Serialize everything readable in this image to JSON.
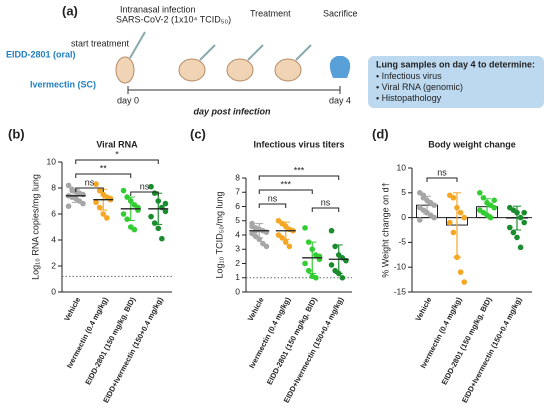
{
  "schematic": {
    "panel": "(a)",
    "infection": "Intranasal infection",
    "virus": "SARS-CoV-2 (1x10⁴ TCID₅₀)",
    "start": "start treatment",
    "treatment": "Treatment",
    "sacrifice": "Sacrifice",
    "arm1": "EIDD-2801 (oral)",
    "arm2": "Ivermectin (SC)",
    "day0": "day 0",
    "day4": "day 4",
    "axis": "day post infection",
    "box_title": "Lung samples on day 4 to determine:",
    "box_items": [
      "Infectious virus",
      "Viral RNA (genomic)",
      "Histopathology"
    ]
  },
  "chart_data": [
    {
      "type": "strip",
      "panel": "(b)",
      "title": "Viral RNA",
      "ylabel": "Log₁₀ RNA copies/mg lung",
      "categories": [
        "Vehicle",
        "Ivermectin (0.4 mg/kg)",
        "EIDD-2801 (150 mg/kg, BID)",
        "EIDD+Ivermectin (150+0.4 mg/kg)"
      ],
      "colors": [
        "#a6a6a6",
        "#f5a623",
        "#33cc33",
        "#1a8c2e"
      ],
      "points": [
        [
          8.2,
          7.9,
          7.7,
          7.6,
          7.5,
          7.4,
          7.3,
          7.2,
          7.0,
          6.8,
          6.6,
          7.8
        ],
        [
          8.3,
          7.8,
          7.5,
          7.3,
          7.1,
          6.9,
          6.5,
          6.0,
          5.7,
          7.2
        ],
        [
          7.8,
          7.3,
          7.0,
          6.7,
          6.3,
          6.0,
          5.6,
          5.0,
          4.8,
          6.5
        ],
        [
          8.1,
          7.6,
          7.0,
          6.5,
          6.2,
          5.8,
          5.3,
          4.9,
          4.1,
          6.8
        ]
      ],
      "means": [
        7.4,
        7.1,
        6.4,
        6.4
      ],
      "errors": [
        0.5,
        0.8,
        0.9,
        1.2
      ],
      "reference_line": 1.2,
      "ylim": [
        0,
        10
      ],
      "yticks": [
        0,
        2,
        4,
        6,
        8,
        10
      ],
      "comparisons": [
        {
          "pair": [
            0,
            3
          ],
          "label": "*"
        },
        {
          "pair": [
            0,
            2
          ],
          "label": "**"
        },
        {
          "pair": [
            0,
            1
          ],
          "label": "ns"
        },
        {
          "pair": [
            2,
            3
          ],
          "label": "ns"
        }
      ]
    },
    {
      "type": "strip",
      "panel": "(c)",
      "title": "Infectious virus titers",
      "ylabel": "Log₁₀ TCID₅₀/mg lung",
      "categories": [
        "Vehicle",
        "Ivermectin (0.4 mg/kg)",
        "EIDD-2801 (150 mg/kg, BID)",
        "EIDD+Ivermectin (150+0.4 mg/kg)"
      ],
      "colors": [
        "#a6a6a6",
        "#f5a623",
        "#33cc33",
        "#1a8c2e"
      ],
      "points": [
        [
          4.8,
          4.5,
          4.4,
          4.3,
          4.2,
          4.1,
          3.9,
          3.7,
          3.4,
          3.2,
          4.6,
          4.3
        ],
        [
          5.0,
          4.8,
          4.6,
          4.4,
          4.3,
          4.0,
          3.8,
          3.5,
          3.2
        ],
        [
          4.5,
          3.5,
          3.0,
          2.6,
          2.3,
          2.0,
          1.5,
          1.1,
          1.0,
          2.5
        ],
        [
          4.3,
          3.2,
          2.6,
          2.4,
          2.2,
          1.9,
          1.5,
          1.3,
          1.0
        ]
      ],
      "means": [
        4.3,
        4.3,
        2.4,
        2.3
      ],
      "errors": [
        0.5,
        0.6,
        1.1,
        1.0
      ],
      "reference_line": 1.0,
      "ylim": [
        0,
        8
      ],
      "yticks": [
        0,
        1,
        2,
        3,
        4,
        5,
        6,
        7,
        8
      ],
      "comparisons": [
        {
          "pair": [
            0,
            3
          ],
          "label": "***"
        },
        {
          "pair": [
            0,
            2
          ],
          "label": "***"
        },
        {
          "pair": [
            0,
            1
          ],
          "label": "ns"
        },
        {
          "pair": [
            2,
            3
          ],
          "label": "ns"
        }
      ]
    },
    {
      "type": "bar",
      "panel": "(d)",
      "title": "Body weight change",
      "ylabel": "% Weight change on d†",
      "categories": [
        "Vehicle",
        "Ivermectin (0.4 mg/kg)",
        "EIDD-2801 (150 mg/kg, BID)",
        "EIDD+Ivermectin (150+0.4 mg/kg)"
      ],
      "colors": [
        "#a6a6a6",
        "#f5a623",
        "#33cc33",
        "#1a8c2e"
      ],
      "points": [
        [
          5,
          4,
          3.5,
          3,
          2.5,
          2,
          1.5,
          1,
          0.5,
          0,
          -0.5,
          4.5
        ],
        [
          4.5,
          4,
          2,
          1,
          0,
          -1,
          -3,
          -8,
          -11,
          -13
        ],
        [
          5,
          4,
          3,
          2.5,
          2,
          1.5,
          1,
          0.5,
          0,
          3.5
        ],
        [
          2,
          1.5,
          1,
          0,
          -1,
          -2,
          -3,
          -4,
          -6,
          1
        ]
      ],
      "means": [
        2.5,
        -1.5,
        2.2,
        -0.1
      ],
      "errors": [
        1.8,
        6.5,
        1.6,
        2.4
      ],
      "ylim": [
        -15,
        10
      ],
      "yticks": [
        -15,
        -10,
        -5,
        0,
        5,
        10
      ],
      "comparisons": [
        {
          "pair": [
            0,
            1
          ],
          "label": "ns"
        }
      ]
    }
  ]
}
